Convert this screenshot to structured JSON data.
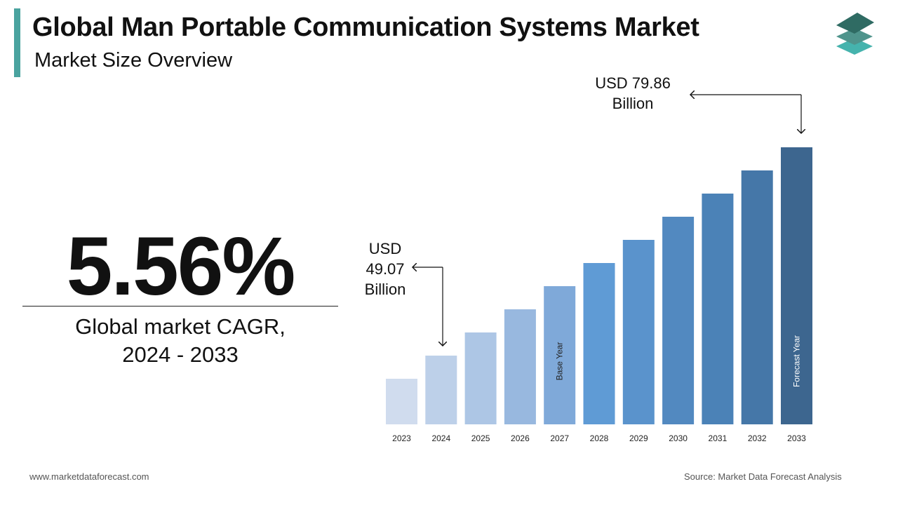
{
  "header": {
    "title": "Global Man Portable Communication Systems Market",
    "subtitle": "Market Size Overview"
  },
  "logo": {
    "icon": "stacked-layers-logo",
    "colors": [
      "#2f6b63",
      "#4f948c",
      "#45b3ad"
    ]
  },
  "cagr": {
    "value": "5.56%",
    "label_line1": "Global market CAGR,",
    "label_line2": "2024 - 2033"
  },
  "chart_data": {
    "type": "bar",
    "categories": [
      "2023",
      "2024",
      "2025",
      "2026",
      "2027",
      "2028",
      "2029",
      "2030",
      "2031",
      "2032",
      "2033"
    ],
    "values": [
      null,
      49.07,
      null,
      null,
      null,
      null,
      null,
      null,
      null,
      null,
      79.86
    ],
    "unit": "USD Billion",
    "colors": [
      "#d0dcee",
      "#bdd0e9",
      "#adc6e5",
      "#98b8df",
      "#7fa9d9",
      "#5f9bd5",
      "#5a93cc",
      "#5289c0",
      "#4b82b7",
      "#4577a8",
      "#3d668f"
    ],
    "bar_labels": {
      "2027": "Base Year",
      "2033": "Forecast Year"
    },
    "annotations": [
      {
        "year": "2024",
        "line1": "USD",
        "line2": "49.07",
        "line3": "Billion"
      },
      {
        "year": "2033",
        "line1": "USD 79.86",
        "line2": "Billion"
      }
    ],
    "grid": false,
    "legend": "none"
  },
  "footer": {
    "website": "www.marketdataforecast.com",
    "source": "Source: Market Data Forecast Analysis"
  }
}
